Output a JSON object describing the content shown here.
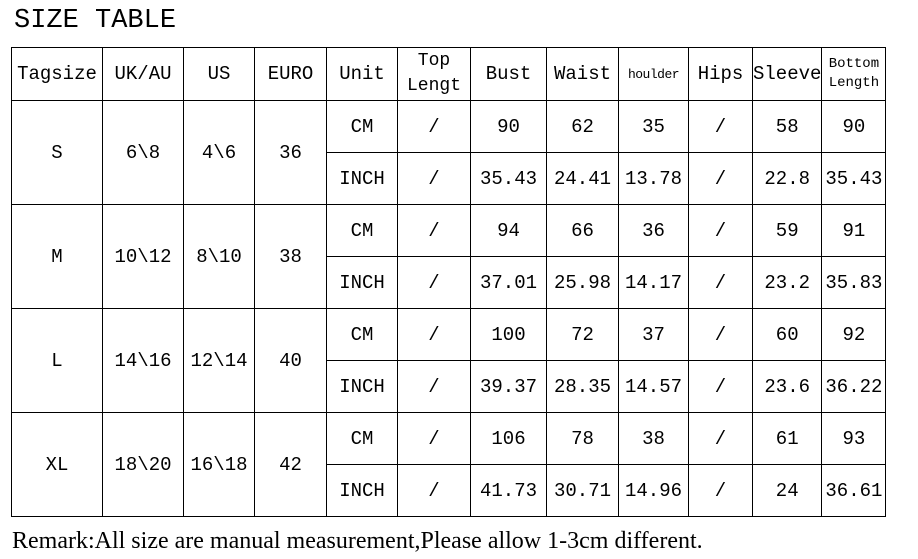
{
  "title": "SIZE TABLE",
  "headers": [
    "Tagsize",
    "UK/AU",
    "US",
    "EURO",
    "Unit",
    "Top Lengt",
    "Bust",
    "Waist",
    "houlder",
    "Hips",
    "Sleeve",
    "Bottom Length"
  ],
  "rows": [
    {
      "tag": "S",
      "uk": "6\\8",
      "us": "4\\6",
      "euro": "36",
      "cm": [
        "CM",
        "/",
        "90",
        "62",
        "35",
        "/",
        "58",
        "90"
      ],
      "inch": [
        "INCH",
        "/",
        "35.43",
        "24.41",
        "13.78",
        "/",
        "22.8",
        "35.43"
      ]
    },
    {
      "tag": "M",
      "uk": "10\\12",
      "us": "8\\10",
      "euro": "38",
      "cm": [
        "CM",
        "/",
        "94",
        "66",
        "36",
        "/",
        "59",
        "91"
      ],
      "inch": [
        "INCH",
        "/",
        "37.01",
        "25.98",
        "14.17",
        "/",
        "23.2",
        "35.83"
      ]
    },
    {
      "tag": "L",
      "uk": "14\\16",
      "us": "12\\14",
      "euro": "40",
      "cm": [
        "CM",
        "/",
        "100",
        "72",
        "37",
        "/",
        "60",
        "92"
      ],
      "inch": [
        "INCH",
        "/",
        "39.37",
        "28.35",
        "14.57",
        "/",
        "23.6",
        "36.22"
      ]
    },
    {
      "tag": "XL",
      "uk": "18\\20",
      "us": "16\\18",
      "euro": "42",
      "cm": [
        "CM",
        "/",
        "106",
        "78",
        "38",
        "/",
        "61",
        "93"
      ],
      "inch": [
        "INCH",
        "/",
        "41.73",
        "30.71",
        "14.96",
        "/",
        "24",
        "36.61"
      ]
    }
  ],
  "remark": "Remark:All size are manual measurement,Please allow 1-3cm different."
}
